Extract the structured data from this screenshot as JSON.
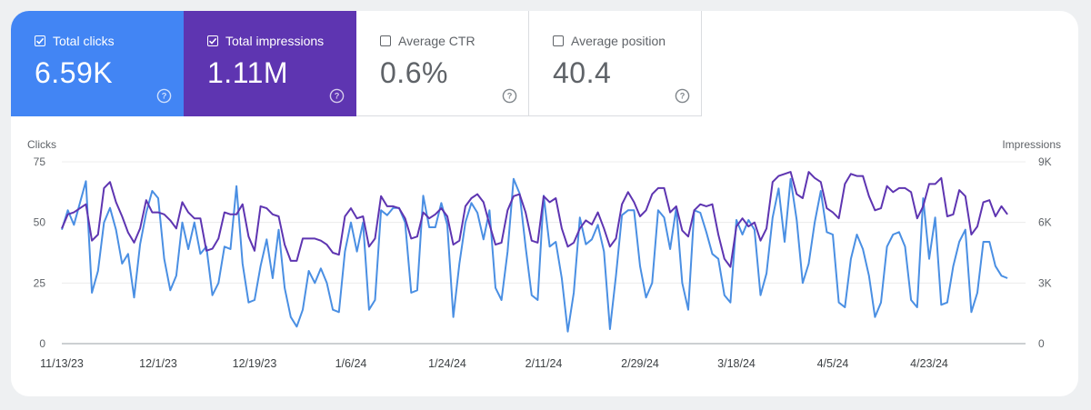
{
  "metrics": [
    {
      "label": "Total clicks",
      "value": "6.59K",
      "checked": true,
      "color": "#4285f4"
    },
    {
      "label": "Total impressions",
      "value": "1.11M",
      "checked": true,
      "color": "#5e35b1"
    },
    {
      "label": "Average CTR",
      "value": "0.6%",
      "checked": false,
      "color": "#ffffff"
    },
    {
      "label": "Average position",
      "value": "40.4",
      "checked": false,
      "color": "#ffffff"
    }
  ],
  "chart_data": {
    "type": "line",
    "left_axis": {
      "title": "Clicks",
      "ylim": [
        0,
        75
      ],
      "ticks": [
        "75",
        "50",
        "25",
        "0"
      ]
    },
    "right_axis": {
      "title": "Impressions",
      "ylim": [
        0,
        9000
      ],
      "ticks": [
        "9K",
        "6K",
        "3K",
        "0"
      ]
    },
    "x_tick_labels": [
      "11/13/23",
      "12/1/23",
      "12/19/23",
      "1/6/24",
      "1/24/24",
      "2/11/24",
      "2/29/24",
      "3/18/24",
      "4/5/24",
      "4/23/24"
    ],
    "x_range": [
      "11/13/23",
      "5/10/24"
    ],
    "grid": true,
    "series": [
      {
        "name": "Clicks",
        "axis": "left",
        "color": "#4a8fe3",
        "points": [
          [
            0,
            47
          ],
          [
            2,
            55
          ],
          [
            4,
            49
          ],
          [
            6,
            58
          ],
          [
            8,
            67
          ],
          [
            10,
            21
          ],
          [
            12,
            30
          ],
          [
            14,
            50
          ],
          [
            16,
            56
          ],
          [
            18,
            47
          ],
          [
            20,
            33
          ],
          [
            22,
            37
          ],
          [
            24,
            19
          ],
          [
            26,
            41
          ],
          [
            28,
            54
          ],
          [
            30,
            63
          ],
          [
            32,
            60
          ],
          [
            34,
            35
          ],
          [
            36,
            22
          ],
          [
            38,
            28
          ],
          [
            40,
            50
          ],
          [
            42,
            39
          ],
          [
            44,
            50
          ],
          [
            46,
            37
          ],
          [
            48,
            40
          ],
          [
            50,
            20
          ],
          [
            52,
            25
          ],
          [
            54,
            40
          ],
          [
            56,
            39
          ],
          [
            58,
            65
          ],
          [
            60,
            33
          ],
          [
            62,
            17
          ],
          [
            64,
            18
          ],
          [
            66,
            32
          ],
          [
            68,
            43
          ],
          [
            70,
            27
          ],
          [
            72,
            47
          ],
          [
            74,
            23
          ],
          [
            76,
            11
          ],
          [
            78,
            7
          ],
          [
            80,
            14
          ],
          [
            82,
            30
          ],
          [
            84,
            25
          ],
          [
            86,
            31
          ],
          [
            88,
            25
          ],
          [
            90,
            14
          ],
          [
            92,
            13
          ],
          [
            94,
            38
          ],
          [
            96,
            50
          ],
          [
            98,
            38
          ],
          [
            100,
            50
          ],
          [
            102,
            14
          ],
          [
            104,
            18
          ],
          [
            106,
            55
          ],
          [
            108,
            53
          ],
          [
            110,
            56
          ],
          [
            112,
            56
          ],
          [
            114,
            50
          ],
          [
            116,
            21
          ],
          [
            118,
            22
          ],
          [
            120,
            61
          ],
          [
            122,
            48
          ],
          [
            124,
            48
          ],
          [
            126,
            58
          ],
          [
            128,
            49
          ],
          [
            130,
            11
          ],
          [
            132,
            33
          ],
          [
            134,
            50
          ],
          [
            136,
            58
          ],
          [
            138,
            54
          ],
          [
            140,
            43
          ],
          [
            142,
            55
          ],
          [
            144,
            23
          ],
          [
            146,
            18
          ],
          [
            148,
            38
          ],
          [
            150,
            68
          ],
          [
            152,
            62
          ],
          [
            154,
            40
          ],
          [
            156,
            20
          ],
          [
            158,
            18
          ],
          [
            160,
            61
          ],
          [
            162,
            40
          ],
          [
            164,
            42
          ],
          [
            166,
            27
          ],
          [
            168,
            5
          ],
          [
            170,
            21
          ],
          [
            172,
            52
          ],
          [
            174,
            41
          ],
          [
            176,
            43
          ],
          [
            178,
            49
          ],
          [
            180,
            38
          ],
          [
            182,
            6
          ],
          [
            184,
            28
          ],
          [
            186,
            53
          ],
          [
            188,
            55
          ],
          [
            190,
            55
          ],
          [
            192,
            32
          ],
          [
            194,
            19
          ],
          [
            196,
            25
          ],
          [
            198,
            55
          ],
          [
            200,
            52
          ],
          [
            202,
            39
          ],
          [
            204,
            56
          ],
          [
            206,
            25
          ],
          [
            208,
            14
          ],
          [
            210,
            55
          ],
          [
            212,
            54
          ],
          [
            214,
            46
          ],
          [
            216,
            37
          ],
          [
            218,
            35
          ],
          [
            220,
            20
          ],
          [
            222,
            17
          ],
          [
            224,
            51
          ],
          [
            226,
            45
          ],
          [
            228,
            51
          ],
          [
            230,
            47
          ],
          [
            232,
            20
          ],
          [
            234,
            29
          ],
          [
            236,
            52
          ],
          [
            238,
            64
          ],
          [
            240,
            42
          ],
          [
            242,
            68
          ],
          [
            244,
            51
          ],
          [
            246,
            25
          ],
          [
            248,
            33
          ],
          [
            250,
            50
          ],
          [
            252,
            63
          ],
          [
            254,
            46
          ],
          [
            256,
            45
          ],
          [
            258,
            17
          ],
          [
            260,
            15
          ],
          [
            262,
            35
          ],
          [
            264,
            45
          ],
          [
            266,
            39
          ],
          [
            268,
            28
          ],
          [
            270,
            11
          ],
          [
            272,
            17
          ],
          [
            274,
            40
          ],
          [
            276,
            45
          ],
          [
            278,
            46
          ],
          [
            280,
            40
          ],
          [
            282,
            18
          ],
          [
            284,
            15
          ],
          [
            286,
            60
          ],
          [
            288,
            35
          ],
          [
            290,
            52
          ],
          [
            292,
            16
          ],
          [
            294,
            17
          ],
          [
            296,
            32
          ],
          [
            298,
            42
          ],
          [
            300,
            47
          ],
          [
            302,
            13
          ],
          [
            304,
            21
          ],
          [
            306,
            42
          ],
          [
            308,
            42
          ],
          [
            310,
            32
          ],
          [
            312,
            28
          ],
          [
            314,
            27
          ]
        ]
      },
      {
        "name": "Impressions",
        "axis": "right",
        "color": "#5e35b1",
        "points": [
          [
            0,
            5700
          ],
          [
            2,
            6400
          ],
          [
            4,
            6500
          ],
          [
            6,
            6700
          ],
          [
            8,
            6900
          ],
          [
            10,
            5100
          ],
          [
            12,
            5400
          ],
          [
            14,
            7700
          ],
          [
            16,
            8000
          ],
          [
            18,
            7000
          ],
          [
            20,
            6300
          ],
          [
            22,
            5500
          ],
          [
            24,
            5000
          ],
          [
            26,
            5700
          ],
          [
            28,
            7100
          ],
          [
            30,
            6500
          ],
          [
            32,
            6500
          ],
          [
            34,
            6400
          ],
          [
            36,
            6100
          ],
          [
            38,
            5700
          ],
          [
            40,
            7000
          ],
          [
            42,
            6500
          ],
          [
            44,
            6200
          ],
          [
            46,
            6200
          ],
          [
            48,
            4600
          ],
          [
            50,
            4700
          ],
          [
            52,
            5200
          ],
          [
            54,
            6500
          ],
          [
            56,
            6400
          ],
          [
            58,
            6400
          ],
          [
            60,
            6900
          ],
          [
            62,
            5300
          ],
          [
            64,
            4600
          ],
          [
            66,
            6800
          ],
          [
            68,
            6700
          ],
          [
            70,
            6400
          ],
          [
            72,
            6300
          ],
          [
            74,
            4900
          ],
          [
            76,
            4100
          ],
          [
            78,
            4100
          ],
          [
            80,
            5200
          ],
          [
            82,
            5200
          ],
          [
            84,
            5200
          ],
          [
            86,
            5100
          ],
          [
            88,
            4900
          ],
          [
            90,
            4500
          ],
          [
            92,
            4400
          ],
          [
            94,
            6300
          ],
          [
            96,
            6700
          ],
          [
            98,
            6200
          ],
          [
            100,
            6300
          ],
          [
            102,
            4800
          ],
          [
            104,
            5200
          ],
          [
            106,
            7300
          ],
          [
            108,
            6800
          ],
          [
            110,
            6800
          ],
          [
            112,
            6700
          ],
          [
            114,
            6200
          ],
          [
            116,
            5200
          ],
          [
            118,
            5300
          ],
          [
            120,
            6500
          ],
          [
            122,
            6200
          ],
          [
            124,
            6400
          ],
          [
            126,
            6700
          ],
          [
            128,
            6300
          ],
          [
            130,
            4900
          ],
          [
            132,
            5100
          ],
          [
            134,
            6800
          ],
          [
            136,
            7200
          ],
          [
            138,
            7400
          ],
          [
            140,
            7000
          ],
          [
            142,
            5900
          ],
          [
            144,
            4900
          ],
          [
            146,
            5000
          ],
          [
            148,
            6600
          ],
          [
            150,
            7300
          ],
          [
            152,
            7400
          ],
          [
            154,
            6500
          ],
          [
            156,
            5100
          ],
          [
            158,
            5000
          ],
          [
            160,
            7300
          ],
          [
            162,
            7000
          ],
          [
            164,
            7200
          ],
          [
            166,
            5700
          ],
          [
            168,
            4800
          ],
          [
            170,
            5000
          ],
          [
            172,
            5700
          ],
          [
            174,
            6100
          ],
          [
            176,
            5900
          ],
          [
            178,
            6500
          ],
          [
            180,
            5700
          ],
          [
            182,
            4800
          ],
          [
            184,
            5200
          ],
          [
            186,
            6900
          ],
          [
            188,
            7500
          ],
          [
            190,
            7000
          ],
          [
            192,
            6300
          ],
          [
            194,
            6600
          ],
          [
            196,
            7400
          ],
          [
            198,
            7700
          ],
          [
            200,
            7700
          ],
          [
            202,
            6500
          ],
          [
            204,
            6800
          ],
          [
            206,
            5600
          ],
          [
            208,
            5300
          ],
          [
            210,
            6600
          ],
          [
            212,
            6900
          ],
          [
            214,
            6800
          ],
          [
            216,
            6900
          ],
          [
            218,
            5400
          ],
          [
            220,
            4200
          ],
          [
            222,
            3800
          ],
          [
            224,
            5800
          ],
          [
            226,
            6200
          ],
          [
            228,
            5800
          ],
          [
            230,
            6000
          ],
          [
            232,
            5100
          ],
          [
            234,
            5700
          ],
          [
            236,
            8000
          ],
          [
            238,
            8300
          ],
          [
            240,
            8400
          ],
          [
            242,
            8500
          ],
          [
            244,
            7400
          ],
          [
            246,
            7200
          ],
          [
            248,
            8500
          ],
          [
            250,
            8200
          ],
          [
            252,
            8000
          ],
          [
            254,
            6700
          ],
          [
            256,
            6500
          ],
          [
            258,
            6200
          ],
          [
            260,
            7900
          ],
          [
            262,
            8400
          ],
          [
            264,
            8300
          ],
          [
            266,
            8300
          ],
          [
            268,
            7300
          ],
          [
            270,
            6600
          ],
          [
            272,
            6700
          ],
          [
            274,
            7800
          ],
          [
            276,
            7500
          ],
          [
            278,
            7700
          ],
          [
            280,
            7700
          ],
          [
            282,
            7500
          ],
          [
            284,
            6200
          ],
          [
            286,
            6800
          ],
          [
            288,
            7900
          ],
          [
            290,
            7900
          ],
          [
            292,
            8200
          ],
          [
            294,
            6300
          ],
          [
            296,
            6400
          ],
          [
            298,
            7600
          ],
          [
            300,
            7300
          ],
          [
            302,
            5400
          ],
          [
            304,
            5800
          ],
          [
            306,
            7000
          ],
          [
            308,
            7100
          ],
          [
            310,
            6300
          ],
          [
            312,
            6800
          ],
          [
            314,
            6400
          ]
        ]
      }
    ]
  }
}
